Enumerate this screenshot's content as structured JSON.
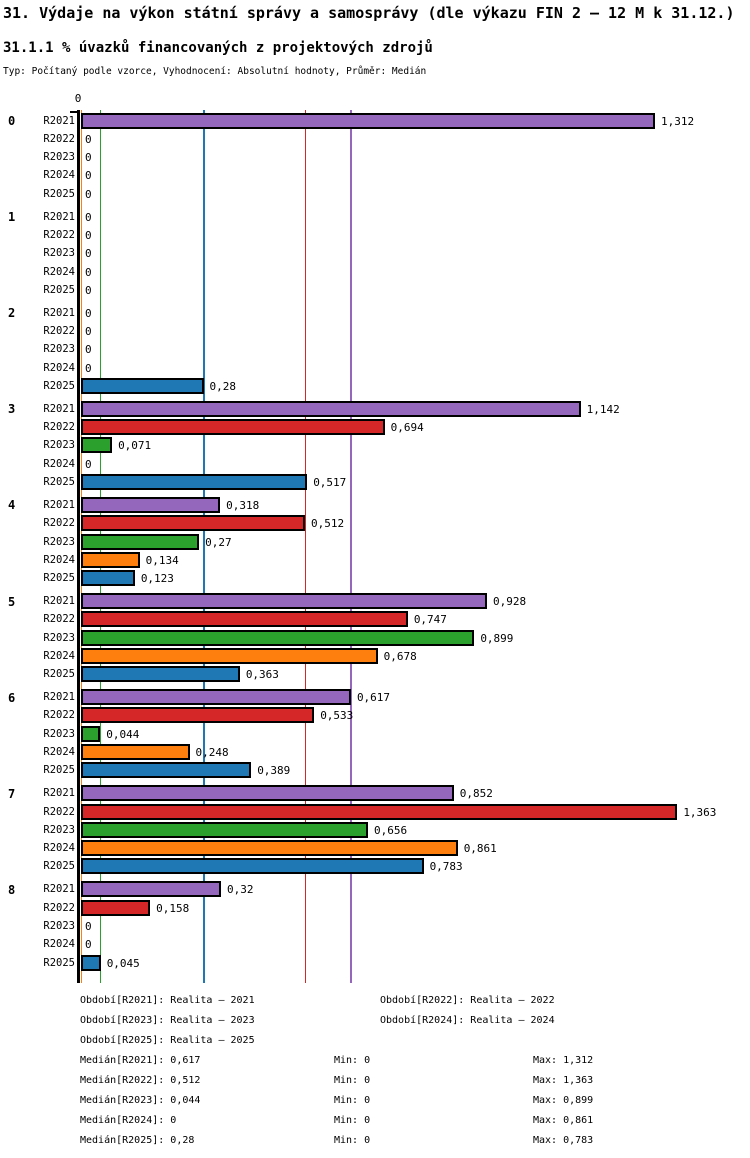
{
  "page": {
    "title": "31. Výdaje na výkon státní správy a samosprávy (dle výkazu FIN 2 – 12 M k 31.12.)",
    "subtitle": "31.1.1 % úvazků financovaných z projektových zdrojů",
    "meta": "Typ: Počítaný podle vzorce, Vyhodnocení: Absolutní hodnoty, Průměr: Medián"
  },
  "chart_data": {
    "type": "bar",
    "orientation": "horizontal",
    "title": "31.1.1 % úvazků financovaných z projektových zdrojů",
    "xlabel": "",
    "ylabel": "",
    "xlim": [
      0,
      1.53
    ],
    "axis_zero_label": "0",
    "grid": "median-reference-lines",
    "series_meta": [
      {
        "name": "R2021",
        "color": "#9467bd",
        "median": 0.617,
        "min": 0,
        "max": 1.312
      },
      {
        "name": "R2022",
        "color": "#d62728",
        "median": 0.512,
        "min": 0,
        "max": 1.363
      },
      {
        "name": "R2023",
        "color": "#2ca02c",
        "median": 0.044,
        "min": 0,
        "max": 0.899
      },
      {
        "name": "R2024",
        "color": "#ff7f0e",
        "median": 0,
        "min": 0,
        "max": 0.861
      },
      {
        "name": "R2025",
        "color": "#1f77b4",
        "median": 0.28,
        "min": 0,
        "max": 0.783
      }
    ],
    "row_labels": [
      "R2021",
      "R2022",
      "R2023",
      "R2024",
      "R2025"
    ],
    "groups": [
      {
        "label": "0",
        "values": [
          1.312,
          0,
          0,
          0,
          0
        ],
        "value_labels": [
          "1,312",
          "0",
          "0",
          "0",
          "0"
        ]
      },
      {
        "label": "1",
        "values": [
          0,
          0,
          0,
          0,
          0
        ],
        "value_labels": [
          "0",
          "0",
          "0",
          "0",
          "0"
        ]
      },
      {
        "label": "2",
        "values": [
          0,
          0,
          0,
          0,
          0.28
        ],
        "value_labels": [
          "0",
          "0",
          "0",
          "0",
          "0,28"
        ]
      },
      {
        "label": "3",
        "values": [
          1.142,
          0.694,
          0.071,
          0,
          0.517
        ],
        "value_labels": [
          "1,142",
          "0,694",
          "0,071",
          "0",
          "0,517"
        ]
      },
      {
        "label": "4",
        "values": [
          0.318,
          0.512,
          0.27,
          0.134,
          0.123
        ],
        "value_labels": [
          "0,318",
          "0,512",
          "0,27",
          "0,134",
          "0,123"
        ]
      },
      {
        "label": "5",
        "values": [
          0.928,
          0.747,
          0.899,
          0.678,
          0.363
        ],
        "value_labels": [
          "0,928",
          "0,747",
          "0,899",
          "0,678",
          "0,363"
        ]
      },
      {
        "label": "6",
        "values": [
          0.617,
          0.533,
          0.044,
          0.248,
          0.389
        ],
        "value_labels": [
          "0,617",
          "0,533",
          "0,044",
          "0,248",
          "0,389"
        ]
      },
      {
        "label": "7",
        "values": [
          0.852,
          1.363,
          0.656,
          0.861,
          0.783
        ],
        "value_labels": [
          "0,852",
          "1,363",
          "0,656",
          "0,861",
          "0,783"
        ]
      },
      {
        "label": "8",
        "values": [
          0.32,
          0.158,
          0,
          0,
          0.045
        ],
        "value_labels": [
          "0,32",
          "0,158",
          "0",
          "0",
          "0,045"
        ]
      }
    ],
    "legend": {
      "periods": [
        "Období[R2021]: Realita – 2021",
        "Období[R2022]: Realita – 2022",
        "Období[R2023]: Realita – 2023",
        "Období[R2024]: Realita – 2024",
        "Období[R2025]: Realita – 2025"
      ],
      "stats": [
        {
          "median": "Medián[R2021]: 0,617",
          "min": "Min: 0",
          "max": "Max: 1,312"
        },
        {
          "median": "Medián[R2022]: 0,512",
          "min": "Min: 0",
          "max": "Max: 1,363"
        },
        {
          "median": "Medián[R2023]: 0,044",
          "min": "Min: 0",
          "max": "Max: 0,899"
        },
        {
          "median": "Medián[R2024]: 0",
          "min": "Min: 0",
          "max": "Max: 0,861"
        },
        {
          "median": "Medián[R2025]: 0,28",
          "min": "Min: 0",
          "max": "Max: 0,783"
        }
      ]
    }
  }
}
